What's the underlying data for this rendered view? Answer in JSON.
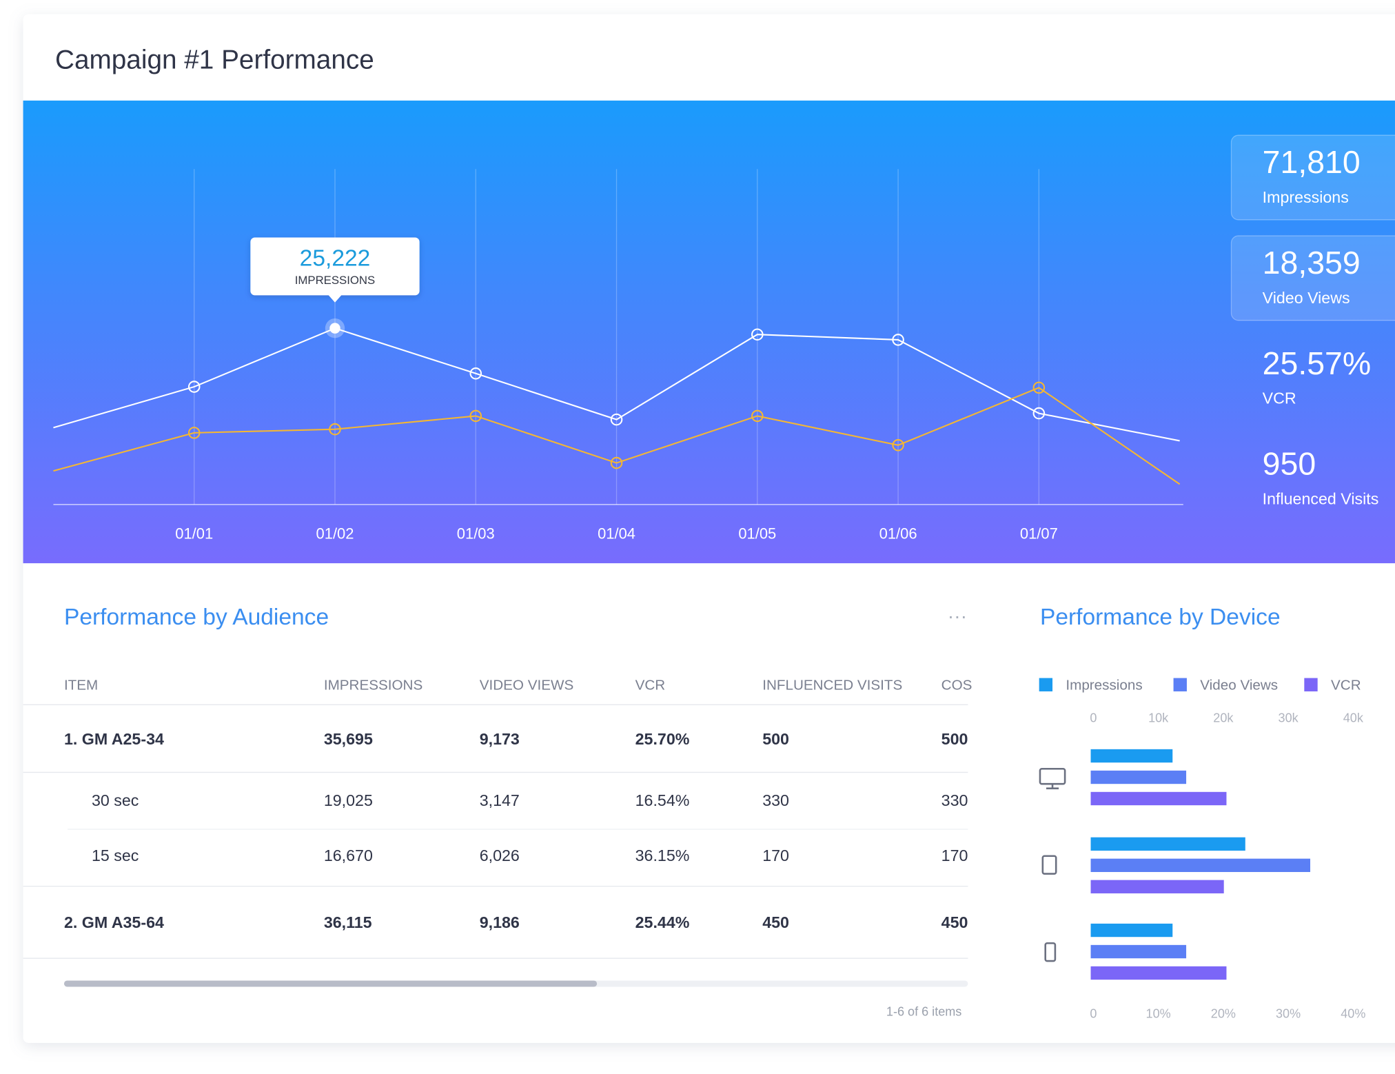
{
  "header": {
    "title": "Campaign #1 Performance"
  },
  "chart_data": [
    {
      "type": "line",
      "categories": [
        null,
        "01/01",
        "01/02",
        "01/03",
        "01/04",
        "01/05",
        "01/06",
        "01/07",
        null
      ],
      "series": [
        {
          "name": "IMPRESSIONS",
          "color": "#ffffff",
          "values": [
            11000,
            16850,
            25222,
            18750,
            12160,
            24330,
            23570,
            13050,
            9120
          ],
          "value_labels": [
            null,
            null,
            "25,222",
            null,
            null,
            null,
            null,
            null,
            null
          ]
        },
        {
          "color": "#f5b731",
          "values": [
            4810,
            10260,
            10770,
            12670,
            5950,
            12670,
            8490,
            16720,
            2910
          ]
        }
      ],
      "ylim": [
        0,
        48000
      ],
      "grid": true
    },
    {
      "type": "bar",
      "orientation": "horizontal",
      "title": "Performance by Device",
      "categories": [
        null,
        null,
        null
      ],
      "series": [
        {
          "name": "Impressions",
          "color": "#1a9bf0",
          "values": [
            12600,
            23800,
            12600
          ]
        },
        {
          "name": "Video Views",
          "color": "#5b7ff5",
          "values": [
            14700,
            33800,
            14700
          ]
        },
        {
          "name": "VCR",
          "color": "#7b66f7",
          "values": [
            20.9,
            20.5,
            20.9
          ],
          "axis": "x2"
        }
      ],
      "xlim": [
        0,
        40000
      ],
      "xticks": [
        0,
        {
          "value": 10000,
          "label": "10k"
        },
        {
          "value": 20000,
          "label": "20k"
        },
        {
          "value": 30000,
          "label": "30k"
        },
        {
          "value": 40000,
          "label": "40k"
        }
      ],
      "x2lim": [
        0,
        40
      ],
      "x2ticks": [
        0,
        {
          "value": 10,
          "label": "10%"
        },
        {
          "value": 20,
          "label": "20%"
        },
        {
          "value": 30,
          "label": "30%"
        },
        {
          "value": 40,
          "label": "40%"
        }
      ]
    }
  ],
  "stats": [
    {
      "value": "71,810",
      "label": "Impressions"
    },
    {
      "value": "18,359",
      "label": "Video Views"
    },
    {
      "value": "25.57%",
      "label": "VCR"
    },
    {
      "value": "950",
      "label": "Influenced Visits"
    }
  ],
  "table": {
    "title": "Performance by Audience",
    "columns": [
      "ITEM",
      "IMPRESSIONS",
      "VIDEO VIEWS",
      "VCR",
      "INFLUENCED VISITS",
      "COS"
    ],
    "rows": [
      {
        "group": true,
        "cells": [
          "1. GM A25-34",
          "35,695",
          "9,173",
          "25.70%",
          "500",
          "500"
        ]
      },
      {
        "group": false,
        "cells": [
          "30 sec",
          "19,025",
          "3,147",
          "16.54%",
          "330",
          "330"
        ]
      },
      {
        "group": false,
        "cells": [
          "15 sec",
          "16,670",
          "6,026",
          "36.15%",
          "170",
          "170"
        ]
      },
      {
        "group": true,
        "cells": [
          "2. GM A35-64",
          "36,115",
          "9,186",
          "25.44%",
          "450",
          "450"
        ]
      }
    ],
    "pagination": "1-6 of 6 items"
  }
}
